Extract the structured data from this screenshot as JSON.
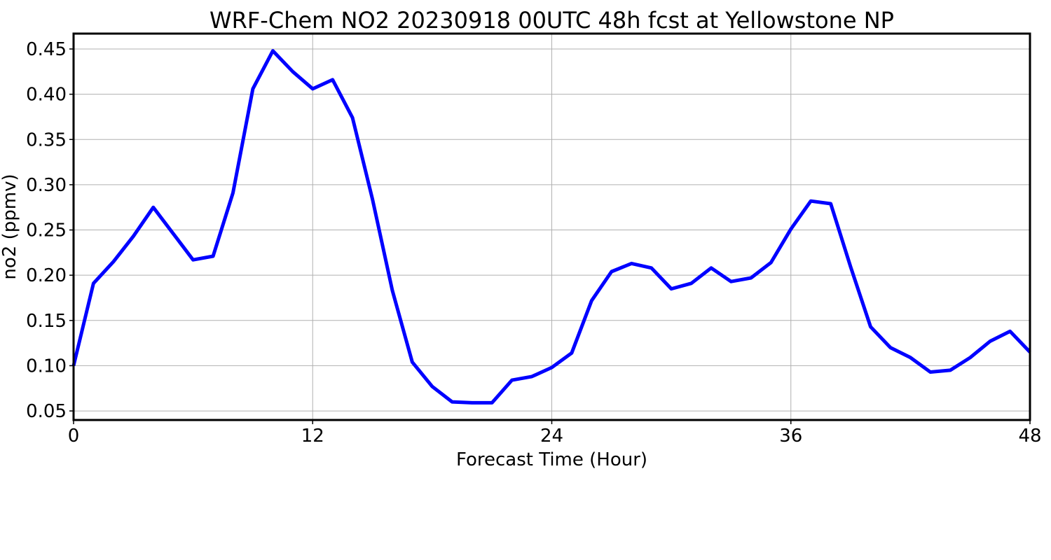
{
  "chart_data": {
    "type": "line",
    "title": "WRF-Chem NO2  20230918 00UTC 48h fcst at Yellowstone NP",
    "xlabel": "Forecast Time (Hour)",
    "ylabel": "no2  (ppmv)",
    "xlim": [
      0,
      48
    ],
    "ylim": [
      0.04,
      0.467
    ],
    "xticks": [
      0,
      12,
      24,
      36,
      48
    ],
    "xtick_labels": [
      "0",
      "12",
      "24",
      "36",
      "48"
    ],
    "yticks": [
      0.05,
      0.1,
      0.15,
      0.2,
      0.25,
      0.3,
      0.35,
      0.4,
      0.45
    ],
    "ytick_labels": [
      "0.05",
      "0.10",
      "0.15",
      "0.20",
      "0.25",
      "0.30",
      "0.35",
      "0.40",
      "0.45"
    ],
    "grid": true,
    "series": [
      {
        "color": "#0000ff",
        "x": [
          0,
          1,
          2,
          3,
          4,
          5,
          6,
          7,
          8,
          9,
          10,
          11,
          12,
          13,
          14,
          15,
          16,
          17,
          18,
          19,
          20,
          21,
          22,
          23,
          24,
          25,
          26,
          27,
          28,
          29,
          30,
          31,
          32,
          33,
          34,
          35,
          36,
          37,
          38,
          39,
          40,
          41,
          42,
          43,
          44,
          45,
          46,
          47,
          48
        ],
        "values": [
          0.1,
          0.191,
          0.215,
          0.243,
          0.275,
          0.246,
          0.217,
          0.221,
          0.291,
          0.406,
          0.448,
          0.425,
          0.406,
          0.416,
          0.374,
          0.284,
          0.183,
          0.104,
          0.077,
          0.06,
          0.059,
          0.059,
          0.084,
          0.088,
          0.098,
          0.114,
          0.172,
          0.204,
          0.213,
          0.208,
          0.185,
          0.191,
          0.208,
          0.193,
          0.197,
          0.214,
          0.251,
          0.282,
          0.279,
          0.209,
          0.143,
          0.12,
          0.109,
          0.093,
          0.095,
          0.109,
          0.127,
          0.138,
          0.115
        ]
      }
    ]
  }
}
